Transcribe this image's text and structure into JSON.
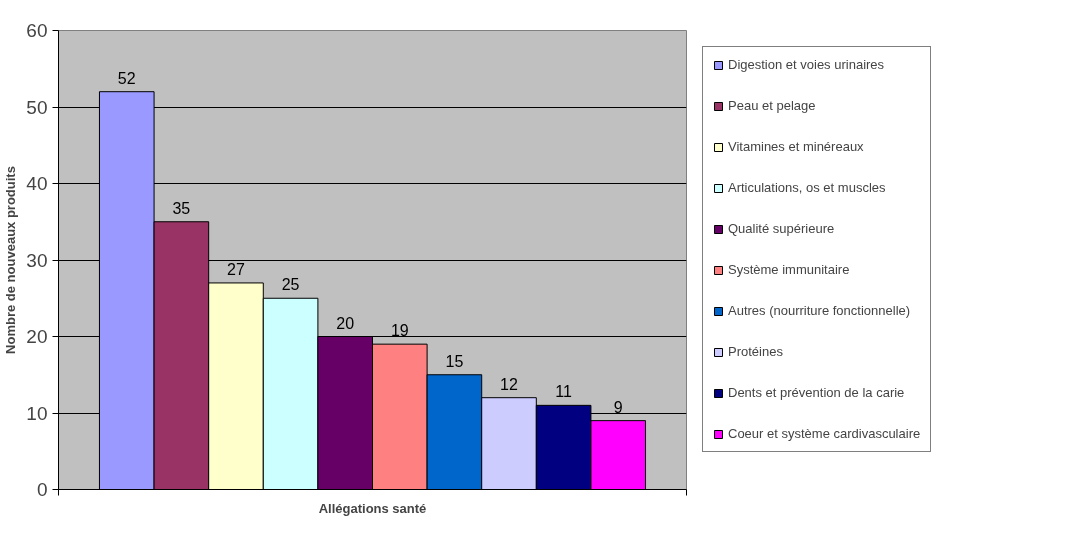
{
  "chart_data": {
    "type": "bar",
    "categories": [
      null
    ],
    "xlabel": "Allégations santé",
    "ylabel": "Nombre de nouveaux produits",
    "ylim": [
      0,
      60
    ],
    "yticks": [
      0,
      10,
      20,
      30,
      40,
      50,
      60
    ],
    "grid": "y",
    "legend": "right",
    "data_labels": true,
    "series": [
      {
        "name": "Digestion et voies urinaires",
        "color": "#9999ff",
        "values": [
          52
        ]
      },
      {
        "name": "Peau et pelage",
        "color": "#993366",
        "values": [
          35
        ]
      },
      {
        "name": "Vitamines et minéreaux",
        "color": "#ffffcc",
        "values": [
          27
        ]
      },
      {
        "name": "Articulations, os et muscles",
        "color": "#ccffff",
        "values": [
          25
        ]
      },
      {
        "name": "Qualité supérieure",
        "color": "#660066",
        "values": [
          20
        ]
      },
      {
        "name": "Système immunitaire",
        "color": "#ff8080",
        "values": [
          19
        ]
      },
      {
        "name": "Autres (nourriture fonctionnelle)",
        "color": "#0066cc",
        "values": [
          15
        ]
      },
      {
        "name": "Protéines",
        "color": "#ccccff",
        "values": [
          12
        ]
      },
      {
        "name": "Dents et prévention de la carie",
        "color": "#000080",
        "values": [
          11
        ]
      },
      {
        "name": "Coeur et système cardivasculaire",
        "color": "#ff00ff",
        "values": [
          9
        ]
      }
    ]
  }
}
